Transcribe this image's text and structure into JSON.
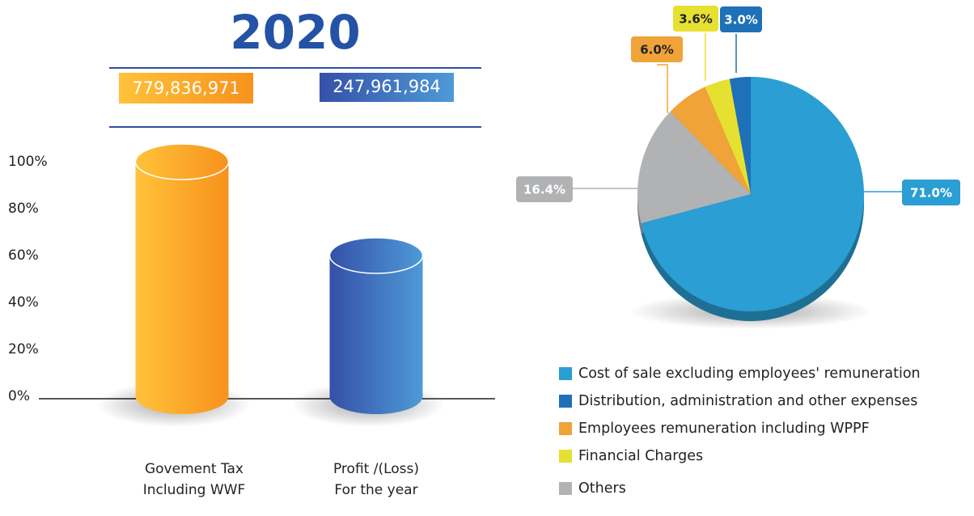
{
  "chart_data": [
    {
      "type": "bar",
      "title": "2020",
      "annotations": [
        "779,836,971",
        "247,961,984"
      ],
      "categories": [
        [
          "Govement Tax",
          "Including WWF"
        ],
        [
          "Profit /(Loss)",
          "For the year"
        ]
      ],
      "values": [
        100,
        60
      ],
      "colors": [
        "#f7a21c",
        "#3f73c4"
      ],
      "ylim": [
        0,
        100
      ],
      "yticks": [
        {
          "value": 0,
          "label": "0%"
        },
        {
          "value": 20,
          "label": "20%"
        },
        {
          "value": 40,
          "label": "40%"
        },
        {
          "value": 60,
          "label": "60%"
        },
        {
          "value": 80,
          "label": "80%"
        },
        {
          "value": 100,
          "label": "100%"
        }
      ],
      "grid": false
    },
    {
      "type": "pie",
      "categories": [
        "Cost of sale excluding employees' remuneration",
        "Distribution, administration and other expenses",
        "Employees remuneration including WPPF",
        "Financial Charges",
        "Others"
      ],
      "values": [
        71.0,
        3.0,
        6.0,
        3.6,
        16.4
      ],
      "value_labels": [
        "71.0%",
        "3.0%",
        "6.0%",
        "3.6%",
        "16.4%"
      ],
      "colors": [
        "#2b9ed4",
        "#1e70b8",
        "#f0a338",
        "#e6e030",
        "#b1b2b4"
      ]
    }
  ]
}
